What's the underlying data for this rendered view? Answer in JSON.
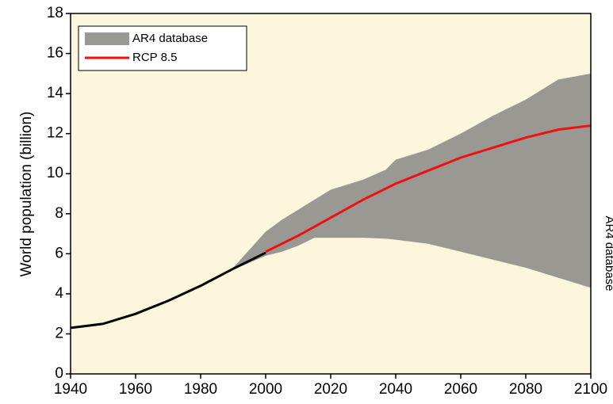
{
  "chart_data": {
    "type": "line",
    "ylabel": "World population (billion)",
    "xlim": [
      1940,
      2100
    ],
    "xticks": [
      1940,
      1960,
      1980,
      2000,
      2020,
      2040,
      2060,
      2080,
      2100
    ],
    "ylim": [
      0,
      18
    ],
    "yticks": [
      0,
      2,
      4,
      6,
      8,
      10,
      12,
      14,
      16,
      18
    ],
    "legend": "upper left",
    "background": "#fcf6dc",
    "annotation": "AR4 database",
    "band": {
      "name": "AR4 database",
      "color": "#999893",
      "x": [
        1990,
        2000,
        2005,
        2010,
        2015,
        2020,
        2030,
        2037,
        2040,
        2050,
        2060,
        2070,
        2080,
        2090,
        2100
      ],
      "upper": [
        5.3,
        7.1,
        7.7,
        8.2,
        8.7,
        9.2,
        9.7,
        10.2,
        10.7,
        11.2,
        12.0,
        12.9,
        13.7,
        14.7,
        15.0
      ],
      "lower": [
        5.2,
        5.9,
        6.1,
        6.4,
        6.8,
        6.8,
        6.8,
        6.75,
        6.7,
        6.5,
        6.1,
        5.7,
        5.3,
        4.8,
        4.3
      ]
    },
    "series": [
      {
        "color": "#000000",
        "x": [
          1940,
          1950,
          1960,
          1970,
          1980,
          1990,
          2000
        ],
        "values": [
          2.3,
          2.5,
          3.0,
          3.65,
          4.4,
          5.25,
          6.05
        ]
      },
      {
        "name": "RCP 8.5",
        "color": "#ee1111",
        "x": [
          2000,
          2010,
          2020,
          2030,
          2040,
          2050,
          2060,
          2070,
          2080,
          2090,
          2100
        ],
        "values": [
          6.1,
          6.9,
          7.8,
          8.7,
          9.5,
          10.15,
          10.8,
          11.3,
          11.8,
          12.2,
          12.4
        ]
      }
    ]
  }
}
